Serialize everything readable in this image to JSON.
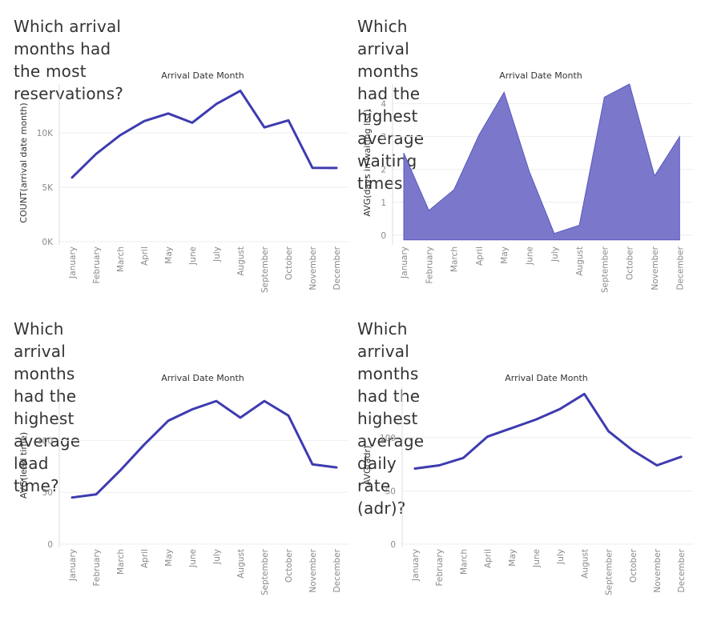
{
  "colors": {
    "line": "#3e3bb0",
    "area_fill": "#7b78cc",
    "grid": "#eeeeee",
    "text": "#333333",
    "tick": "#8a8a8a"
  },
  "panels": [
    {
      "title": "Which arrival months had the most\nreservations?"
    },
    {
      "title": "Which arrival months had the highest\naverage waiting times?"
    },
    {
      "title": "Which arrival months had the highest\naverage lead time?"
    },
    {
      "title": "Which arrival months had the highest\naverage daily rate (adr)?"
    }
  ],
  "chart_data": [
    {
      "type": "line",
      "title": "Which arrival months had the most reservations?",
      "xlabel": "Arrival Date Month",
      "ylabel": "COUNT(arrival date month)",
      "categories": [
        "January",
        "February",
        "March",
        "April",
        "May",
        "June",
        "July",
        "August",
        "September",
        "October",
        "November",
        "December"
      ],
      "values": [
        5900,
        8070,
        9790,
        11090,
        11790,
        10940,
        12660,
        13880,
        10510,
        11160,
        6790,
        6780
      ],
      "ylim": [
        0,
        14500
      ],
      "yticks": [
        0,
        5000,
        10000
      ],
      "ytick_labels": [
        "0K",
        "5K",
        "10K"
      ],
      "grid": true
    },
    {
      "type": "area",
      "title": "Which arrival months had the highest average waiting times?",
      "xlabel": "Arrival Date Month",
      "ylabel": "AVG(days in waiting list)",
      "categories": [
        "January",
        "February",
        "March",
        "April",
        "May",
        "June",
        "July",
        "August",
        "September",
        "October",
        "November",
        "December"
      ],
      "values": [
        2.5,
        0.75,
        1.38,
        3.05,
        4.35,
        1.95,
        0.05,
        0.3,
        4.2,
        4.6,
        1.8,
        3.0
      ],
      "ylim": [
        -0.2,
        4.6
      ],
      "yticks": [
        0,
        1,
        2,
        3,
        4
      ],
      "ytick_labels": [
        "0",
        "1",
        "2",
        "3",
        "4"
      ],
      "grid": true
    },
    {
      "type": "line",
      "title": "Which arrival months had the highest average lead time?",
      "xlabel": "Arrival Date Month",
      "ylabel": "AVG(lead time)",
      "categories": [
        "January",
        "February",
        "March",
        "April",
        "May",
        "June",
        "July",
        "August",
        "September",
        "October",
        "November",
        "December"
      ],
      "values": [
        45,
        48,
        71,
        96,
        119,
        130,
        138,
        122,
        138,
        124,
        77,
        74
      ],
      "ylim": [
        0,
        152
      ],
      "yticks": [
        0,
        50,
        100
      ],
      "ytick_labels": [
        "0",
        "50",
        "100"
      ],
      "grid": true
    },
    {
      "type": "line",
      "title": "Which arrival months had the highest average daily rate (adr)?",
      "xlabel": "Arrival Date Month",
      "ylabel": "AVG(adr)",
      "categories": [
        "January",
        "February",
        "March",
        "April",
        "May",
        "June",
        "July",
        "August",
        "September",
        "October",
        "November",
        "December"
      ],
      "values": [
        71,
        74,
        81,
        101,
        109,
        117,
        127,
        141,
        106,
        88,
        74,
        82
      ],
      "ylim": [
        0,
        148
      ],
      "yticks": [
        0,
        50,
        100
      ],
      "ytick_labels": [
        "0",
        "50",
        "100"
      ],
      "grid": true
    }
  ]
}
